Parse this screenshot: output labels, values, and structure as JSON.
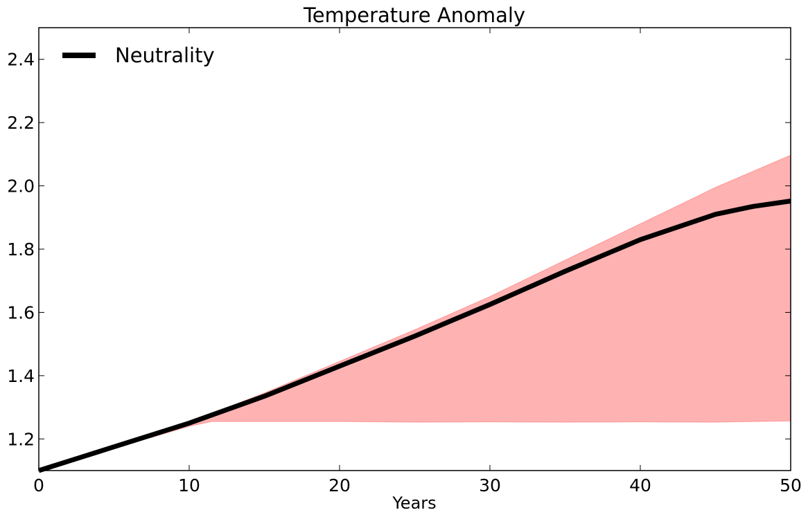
{
  "chart_data": {
    "type": "line",
    "title": "Temperature Anomaly",
    "xlabel": "Years",
    "ylabel": "",
    "xlim": [
      0,
      50
    ],
    "ylim": [
      1.1,
      2.5
    ],
    "xticks": [
      0,
      10,
      20,
      30,
      40,
      50
    ],
    "xtick_labels": [
      "0",
      "10",
      "20",
      "30",
      "40",
      "50"
    ],
    "yticks": [
      1.2,
      1.4,
      1.6,
      1.8,
      2.0,
      2.2,
      2.4
    ],
    "ytick_labels": [
      "1.2",
      "1.4",
      "1.6",
      "1.8",
      "2.0",
      "2.2",
      "2.4"
    ],
    "grid": false,
    "legend": {
      "placement": "top-left",
      "entries": [
        "Neutrality"
      ]
    },
    "series": [
      {
        "name": "Neutrality",
        "color": "#000000",
        "x": [
          0,
          5,
          10,
          15,
          20,
          25,
          30,
          35,
          40,
          45,
          47.5,
          50
        ],
        "y": [
          1.1,
          1.175,
          1.25,
          1.335,
          1.43,
          1.525,
          1.625,
          1.73,
          1.83,
          1.91,
          1.935,
          1.952
        ]
      }
    ],
    "band": {
      "color": "#ff7f7f",
      "x": [
        0,
        5,
        10,
        11.5,
        15,
        20,
        25,
        30,
        35,
        40,
        45,
        50
      ],
      "upper": [
        1.1,
        1.175,
        1.255,
        1.28,
        1.345,
        1.445,
        1.545,
        1.65,
        1.765,
        1.88,
        1.995,
        2.097
      ],
      "lower": [
        1.1,
        1.17,
        1.24,
        1.255,
        1.255,
        1.255,
        1.253,
        1.254,
        1.253,
        1.254,
        1.253,
        1.257
      ]
    }
  }
}
